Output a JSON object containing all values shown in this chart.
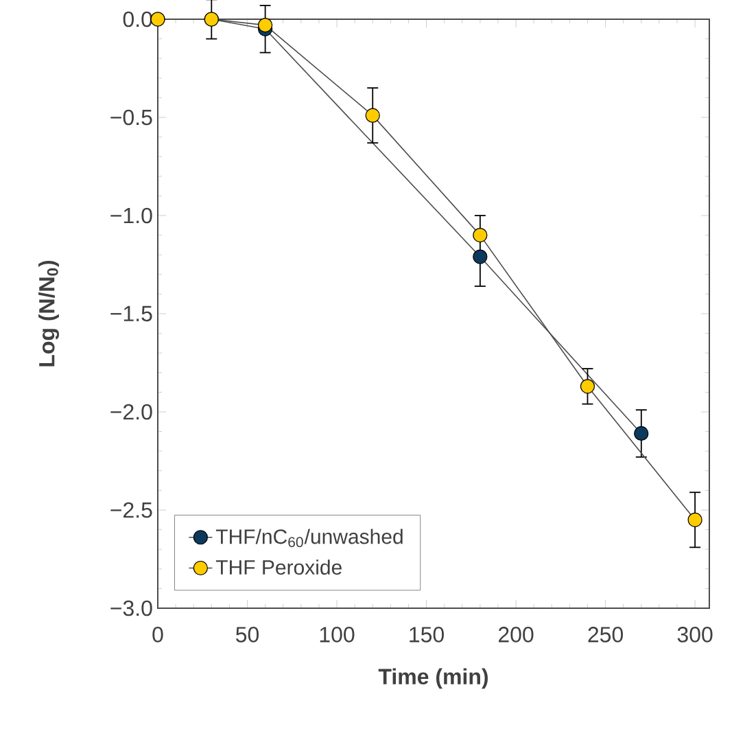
{
  "chart_data": {
    "type": "line",
    "xlabel": "Time (min)",
    "ylabel": "Log (N/N$_{0}$)",
    "xlim": [
      0,
      308
    ],
    "xticks": [
      0,
      50,
      100,
      150,
      200,
      250,
      300
    ],
    "ylim": [
      -3,
      0
    ],
    "yticks": [
      {
        "value": 0,
        "label": "0.0"
      },
      {
        "value": -0.5,
        "label": "−0.5"
      },
      {
        "value": -1,
        "label": "−1.0"
      },
      {
        "value": -1.5,
        "label": "−1.5"
      },
      {
        "value": -2,
        "label": "−2.0"
      },
      {
        "value": -2.5,
        "label": "−2.5"
      },
      {
        "value": -3,
        "label": "−3.0"
      }
    ],
    "marker": "circle",
    "legend": "bottom left",
    "series": [
      {
        "name": "THF/nC$_{60}$/unwashed",
        "color": "#0d3a5c",
        "x": [
          0,
          30,
          60,
          180,
          270
        ],
        "values": [
          0,
          0,
          -0.05,
          -1.21,
          -2.11
        ],
        "errors": [
          null,
          null,
          0.12,
          [
            -1.36,
            -1.0
          ],
          0.12
        ]
      },
      {
        "name": "THF Peroxide",
        "color": "#ffcc00",
        "x": [
          0,
          30,
          60,
          120,
          180,
          240,
          300
        ],
        "values": [
          0,
          0,
          -0.03,
          -0.49,
          -1.1,
          -1.87,
          -2.55
        ],
        "errors": [
          null,
          0.1,
          null,
          0.14,
          null,
          0.09,
          0.14
        ]
      }
    ]
  }
}
